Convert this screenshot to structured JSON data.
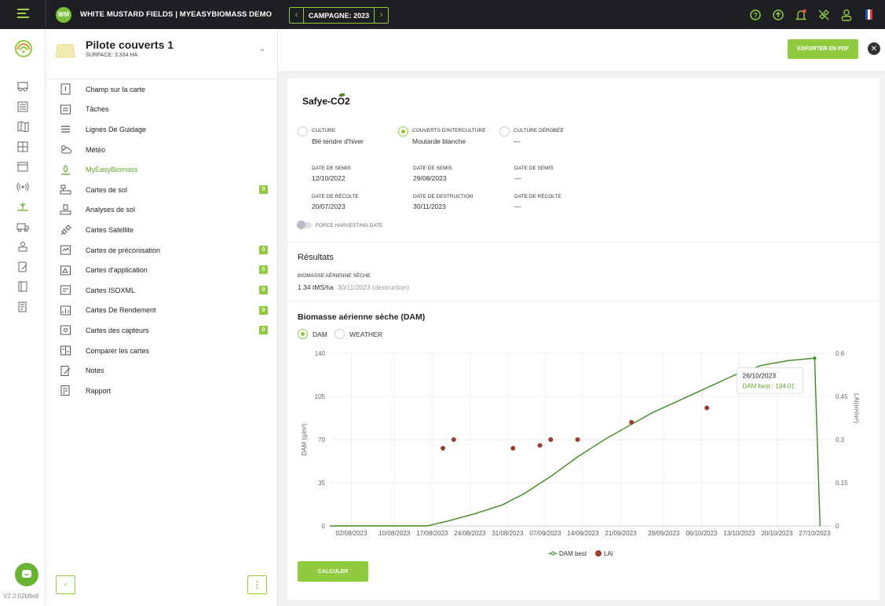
{
  "topbar": {
    "avatar_initials": "WM",
    "farm_name": "WHITE MUSTARD FIELDS | MYEASYBIOMASS DEMO",
    "campaign_label": "CAMPAGNE: 2023"
  },
  "rail": {
    "version": "V2.2:02b8e8"
  },
  "plot": {
    "title": "Pilote couverts 1",
    "surface": "SURFACE: 3.334 HA"
  },
  "menu": {
    "items": [
      {
        "label": "Champ sur la carte",
        "icon": "map-pin-square-icon"
      },
      {
        "label": "Tâches",
        "icon": "tasks-icon"
      },
      {
        "label": "Lignes De Guidage",
        "icon": "guidance-lines-icon"
      },
      {
        "label": "Météo",
        "icon": "weather-icon"
      },
      {
        "label": "MyEasyBiomass",
        "icon": "biomass-icon",
        "active": true
      },
      {
        "label": "Cartes de sol",
        "icon": "soil-map-icon",
        "badge": "0"
      },
      {
        "label": "Analyses de sol",
        "icon": "soil-analysis-icon"
      },
      {
        "label": "Cartes Satellite",
        "icon": "satellite-icon"
      },
      {
        "label": "Cartes de préconisation",
        "icon": "prescription-map-icon",
        "badge": "0"
      },
      {
        "label": "Cartes d'application",
        "icon": "application-map-icon",
        "badge": "0"
      },
      {
        "label": "Cartes ISOXML",
        "icon": "isoxml-map-icon",
        "badge": "0"
      },
      {
        "label": "Cartes De Rendement",
        "icon": "yield-map-icon",
        "badge": "0"
      },
      {
        "label": "Cartes des capteurs",
        "icon": "sensor-map-icon",
        "badge": "0"
      },
      {
        "label": "Comparer les cartes",
        "icon": "compare-maps-icon"
      },
      {
        "label": "Notes",
        "icon": "notes-icon"
      },
      {
        "label": "Rapport",
        "icon": "report-icon"
      }
    ]
  },
  "main": {
    "export_label": "EXPORTER EN PDF",
    "brand": "Safye-CO2",
    "crops": [
      {
        "label": "CULTURE",
        "value": "Blé tendre d'hiver",
        "selected": false
      },
      {
        "label": "COUVERTS D'INTERCULTURE",
        "value": "Moutarde blanche",
        "selected": true
      },
      {
        "label": "CULTURE DÉROBÉE",
        "value": "—",
        "selected": false
      }
    ],
    "dates_row1": [
      {
        "label": "DATE DE SEMIS",
        "value": "12/10/2022"
      },
      {
        "label": "DATE DE SEMIS",
        "value": "29/08/2023"
      },
      {
        "label": "DATE DE SEMIS",
        "value": "—"
      }
    ],
    "dates_row2": [
      {
        "label": "DATE DE RÉCOLTE",
        "value": "20/07/2023"
      },
      {
        "label": "DATE DE DESTRUCTION",
        "value": "30/11/2023"
      },
      {
        "label": "DATE DE RÉCOLTE",
        "value": "—"
      }
    ],
    "force_harvest_label": "FORCE HARVESTING DATE",
    "results_title": "Résultats",
    "results_label": "BIOMASSE AÉRIENNE SÈCHE",
    "results_value": "1.34 tMS/ha",
    "results_date": "30/11/2023 (destruction)",
    "chart_section_title": "Biomasse aérienne sèche (DAM)",
    "chart_toggle_dam": "DAM",
    "chart_toggle_weather": "WEATHER",
    "calc_label": "CALCULER"
  },
  "colors": {
    "accent": "#8fca3f",
    "line": "#3f8a1e",
    "points": "#a0392e",
    "topbar": "#1e1f22"
  },
  "chart_data": {
    "type": "line",
    "xlabel": "",
    "ylabel": "DAM (g/m²)",
    "y2label": "LAI(m²/m²)",
    "x_ticks": [
      "02/08/2023",
      "10/08/2023",
      "17/08/2023",
      "24/08/2023",
      "31/08/2023",
      "07/09/2023",
      "14/09/2023",
      "21/09/2023",
      "29/09/2023",
      "06/10/2023",
      "13/10/2023",
      "20/10/2023",
      "27/10/2023"
    ],
    "y_ticks": [
      0,
      35,
      70,
      105,
      140
    ],
    "y2_ticks": [
      0,
      0.15,
      0.3,
      0.45,
      0.6
    ],
    "ylim": [
      0,
      140
    ],
    "y2lim": [
      0,
      0.6
    ],
    "series": [
      {
        "name": "DAM best",
        "axis": "left",
        "x": [
          "2023-07-29",
          "2023-08-16",
          "2023-08-20",
          "2023-08-25",
          "2023-08-30",
          "2023-09-03",
          "2023-09-08",
          "2023-09-13",
          "2023-09-18",
          "2023-09-22",
          "2023-09-27",
          "2023-10-02",
          "2023-10-07",
          "2023-10-12",
          "2023-10-17",
          "2023-10-22",
          "2023-10-27",
          "2023-10-28"
        ],
        "values": [
          0,
          0,
          4,
          10,
          17,
          26,
          40,
          56,
          70,
          80,
          92,
          102,
          112,
          122,
          130,
          134,
          136,
          0
        ]
      },
      {
        "name": "LAI",
        "axis": "right",
        "x": [
          "2023-08-19",
          "2023-08-21",
          "2023-09-01",
          "2023-09-06",
          "2023-09-08",
          "2023-09-13",
          "2023-09-23",
          "2023-10-07"
        ],
        "values": [
          0.27,
          0.3,
          0.27,
          0.28,
          0.3,
          0.3,
          0.36,
          0.41
        ]
      }
    ],
    "tooltip": {
      "date": "26/10/2023",
      "text": "DAM best : 134.01"
    },
    "legend": "bottom-center",
    "grid": true
  }
}
